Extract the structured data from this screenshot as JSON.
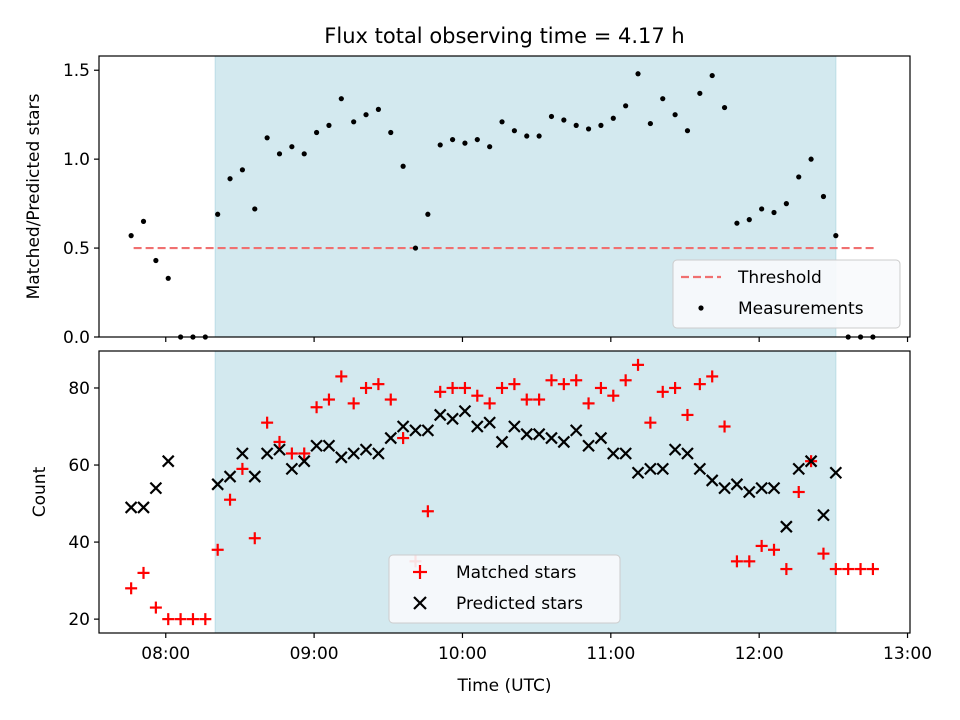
{
  "chart_data": [
    {
      "type": "scatter",
      "title": "Flux total observing time = 4.17 h",
      "xlabel": "",
      "ylabel": "Matched/Predicted stars",
      "ylim": [
        0.0,
        1.58
      ],
      "yticks": [
        0.0,
        0.5,
        1.0,
        1.5
      ],
      "ytick_labels": [
        "0.0",
        "0.5",
        "1.0",
        "1.5"
      ],
      "shaded_span": [
        "08:20",
        "12:31"
      ],
      "shade_color": "#d3e9ef",
      "threshold": {
        "name": "Threshold",
        "value": 0.5,
        "x_start": "07:47",
        "x_end": "12:47",
        "color": "#f07070"
      },
      "legend_position": "lower-right",
      "series": [
        {
          "name": "Measurements",
          "color": "#000000",
          "marker": "dot",
          "x": [
            "07:46",
            "07:51",
            "07:56",
            "08:01",
            "08:06",
            "08:11",
            "08:16",
            "08:21",
            "08:26",
            "08:31",
            "08:36",
            "08:41",
            "08:46",
            "08:51",
            "08:56",
            "09:01",
            "09:06",
            "09:11",
            "09:16",
            "09:21",
            "09:26",
            "09:31",
            "09:36",
            "09:41",
            "09:46",
            "09:51",
            "09:56",
            "10:01",
            "10:06",
            "10:11",
            "10:16",
            "10:21",
            "10:26",
            "10:31",
            "10:36",
            "10:41",
            "10:46",
            "10:51",
            "10:56",
            "11:01",
            "11:06",
            "11:11",
            "11:16",
            "11:21",
            "11:26",
            "11:31",
            "11:36",
            "11:41",
            "11:46",
            "11:51",
            "11:56",
            "12:01",
            "12:06",
            "12:11",
            "12:16",
            "12:21",
            "12:26",
            "12:31",
            "12:36",
            "12:41",
            "12:46"
          ],
          "y": [
            0.57,
            0.65,
            0.43,
            0.33,
            0.0,
            0.0,
            0.0,
            0.69,
            0.89,
            0.94,
            0.72,
            1.12,
            1.03,
            1.07,
            1.03,
            1.15,
            1.19,
            1.34,
            1.21,
            1.25,
            1.28,
            1.15,
            0.96,
            0.5,
            0.69,
            1.08,
            1.11,
            1.09,
            1.11,
            1.07,
            1.21,
            1.16,
            1.13,
            1.13,
            1.24,
            1.22,
            1.19,
            1.17,
            1.19,
            1.23,
            1.3,
            1.48,
            1.2,
            1.34,
            1.25,
            1.16,
            1.37,
            1.47,
            1.29,
            0.64,
            0.66,
            0.72,
            0.7,
            0.75,
            0.9,
            1.0,
            0.79,
            0.57,
            0.0,
            0.0,
            0.0
          ]
        }
      ]
    },
    {
      "type": "scatter",
      "title": "",
      "xlabel": "Time (UTC)",
      "ylabel": "Count",
      "ylim": [
        16.4,
        89.6
      ],
      "yticks": [
        20,
        40,
        60,
        80
      ],
      "ytick_labels": [
        "20",
        "40",
        "60",
        "80"
      ],
      "xlim": [
        "07:33",
        "13:01"
      ],
      "xticks": [
        "08:00",
        "09:00",
        "10:00",
        "11:00",
        "12:00",
        "13:00"
      ],
      "shaded_span": [
        "08:20",
        "12:31"
      ],
      "shade_color": "#d3e9ef",
      "legend_position": "lower-center",
      "series": [
        {
          "name": "Matched stars",
          "color": "#ff0000",
          "marker": "plus",
          "x": [
            "07:46",
            "07:51",
            "07:56",
            "08:01",
            "08:06",
            "08:11",
            "08:16",
            "08:21",
            "08:26",
            "08:31",
            "08:36",
            "08:41",
            "08:46",
            "08:51",
            "08:56",
            "09:01",
            "09:06",
            "09:11",
            "09:16",
            "09:21",
            "09:26",
            "09:31",
            "09:36",
            "09:41",
            "09:46",
            "09:51",
            "09:56",
            "10:01",
            "10:06",
            "10:11",
            "10:16",
            "10:21",
            "10:26",
            "10:31",
            "10:36",
            "10:41",
            "10:46",
            "10:51",
            "10:56",
            "11:01",
            "11:06",
            "11:11",
            "11:16",
            "11:21",
            "11:26",
            "11:31",
            "11:36",
            "11:41",
            "11:46",
            "11:51",
            "11:56",
            "12:01",
            "12:06",
            "12:11",
            "12:16",
            "12:21",
            "12:26",
            "12:31",
            "12:36",
            "12:41",
            "12:46"
          ],
          "y": [
            28,
            32,
            23,
            20,
            20,
            20,
            20,
            38,
            51,
            59,
            41,
            71,
            66,
            63,
            63,
            75,
            77,
            83,
            76,
            80,
            81,
            77,
            67,
            35,
            48,
            79,
            80,
            80,
            78,
            76,
            80,
            81,
            77,
            77,
            82,
            81,
            82,
            76,
            80,
            78,
            82,
            86,
            71,
            79,
            80,
            73,
            81,
            83,
            70,
            35,
            35,
            39,
            38,
            33,
            53,
            61,
            37,
            33,
            33,
            33,
            33
          ]
        },
        {
          "name": "Predicted stars",
          "color": "#000000",
          "marker": "x",
          "x": [
            "07:46",
            "07:51",
            "07:56",
            "08:01",
            "08:21",
            "08:26",
            "08:31",
            "08:36",
            "08:41",
            "08:46",
            "08:51",
            "08:56",
            "09:01",
            "09:06",
            "09:11",
            "09:16",
            "09:21",
            "09:26",
            "09:31",
            "09:36",
            "09:41",
            "09:46",
            "09:51",
            "09:56",
            "10:01",
            "10:06",
            "10:11",
            "10:16",
            "10:21",
            "10:26",
            "10:31",
            "10:36",
            "10:41",
            "10:46",
            "10:51",
            "10:56",
            "11:01",
            "11:06",
            "11:11",
            "11:16",
            "11:21",
            "11:26",
            "11:31",
            "11:36",
            "11:41",
            "11:46",
            "11:51",
            "11:56",
            "12:01",
            "12:06",
            "12:11",
            "12:16",
            "12:21",
            "12:26",
            "12:31"
          ],
          "y": [
            49,
            49,
            54,
            61,
            55,
            57,
            63,
            57,
            63,
            64,
            59,
            61,
            65,
            65,
            62,
            63,
            64,
            63,
            67,
            70,
            69,
            69,
            73,
            72,
            74,
            70,
            71,
            66,
            70,
            68,
            68,
            67,
            66,
            69,
            65,
            67,
            63,
            63,
            58,
            59,
            59,
            64,
            63,
            59,
            56,
            54,
            55,
            53,
            54,
            54,
            44,
            59,
            61,
            47,
            58
          ]
        }
      ]
    }
  ]
}
